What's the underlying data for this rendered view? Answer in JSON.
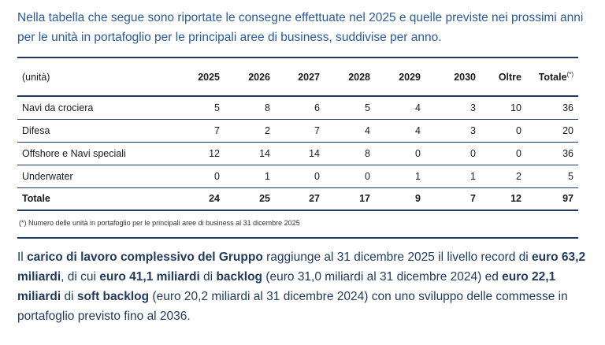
{
  "intro": "Nella tabella che segue sono riportate le consegne effettuate nel 2025 e quelle previste nei prossimi anni per le unità in portafoglio per le principali aree di business, suddivise per anno.",
  "table": {
    "columns": [
      "(unità)",
      "2025",
      "2026",
      "2027",
      "2028",
      "2029",
      "2030",
      "Oltre",
      "Totale"
    ],
    "total_note_mark": "(*)",
    "rows": [
      [
        "Navi da crociera",
        5,
        8,
        6,
        5,
        4,
        3,
        10,
        36
      ],
      [
        "Difesa",
        7,
        2,
        7,
        4,
        4,
        3,
        0,
        20
      ],
      [
        "Offshore e Navi speciali",
        12,
        14,
        14,
        8,
        0,
        0,
        0,
        36
      ],
      [
        "Underwater",
        0,
        1,
        0,
        0,
        1,
        1,
        2,
        5
      ]
    ],
    "total_row": [
      "Totale",
      24,
      25,
      27,
      17,
      9,
      7,
      12,
      97
    ],
    "footnote": "(*) Numero delle unità in portafoglio per le principali aree di business al 31 dicembre 2025"
  },
  "paragraph": {
    "segments": [
      {
        "text": "Il ",
        "bold": false
      },
      {
        "text": "carico di lavoro complessivo del Gruppo",
        "bold": true
      },
      {
        "text": " raggiunge al 31 dicembre 2025 il livello record di ",
        "bold": false
      },
      {
        "text": "euro 63,2 miliardi",
        "bold": true
      },
      {
        "text": ", di cui ",
        "bold": false
      },
      {
        "text": "euro 41,1 miliardi",
        "bold": true
      },
      {
        "text": " di ",
        "bold": false
      },
      {
        "text": "backlog",
        "bold": true
      },
      {
        "text": " (euro 31,0 miliardi al 31 dicembre 2024) ed ",
        "bold": false
      },
      {
        "text": "euro 22,1 miliardi",
        "bold": true
      },
      {
        "text": " di ",
        "bold": false
      },
      {
        "text": "soft backlog",
        "bold": true
      },
      {
        "text": " (euro 20,2 miliardi al 31 dicembre 2024) con uno sviluppo delle commesse in portafoglio previsto fino al 2036.",
        "bold": false
      }
    ]
  }
}
